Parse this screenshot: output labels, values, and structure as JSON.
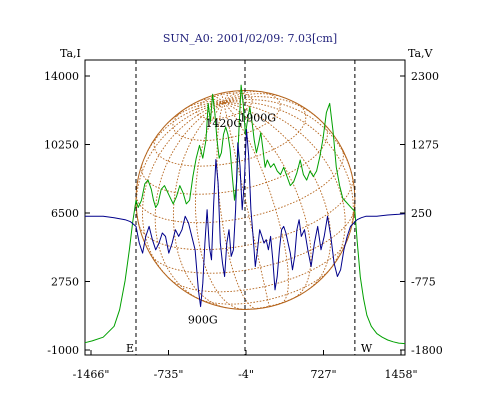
{
  "chart_data": {
    "type": "line",
    "title": "SUN_A0: 2001/02/09: 7.03[cm]",
    "y_left": {
      "label": "Ta,I",
      "ticks": [
        "14000",
        "10250",
        "6500",
        "2750",
        "-1000"
      ],
      "range": [
        -1000,
        14000
      ]
    },
    "y_right": {
      "label": "Ta,V",
      "ticks": [
        "2300",
        "1275",
        "250",
        "-775",
        "-1800"
      ],
      "range": [
        -1800,
        2300
      ]
    },
    "x_axis": {
      "ticks": [
        "-1466\"",
        "-735\"",
        "-4\"",
        "727\"",
        "1458\""
      ],
      "range": [
        -1466,
        1458
      ]
    },
    "markers": [
      {
        "label": "E",
        "x": -1000
      },
      {
        "label": "",
        "x": -4
      },
      {
        "label": "W",
        "x": 1000
      }
    ],
    "annotations": [
      {
        "text": "1420G",
        "x": -220,
        "y": 11200
      },
      {
        "text": "1900G",
        "x": 90,
        "y": 11500
      },
      {
        "text": "900G",
        "x": -380,
        "y": 450
      }
    ],
    "grid": false,
    "sun_disk": {
      "center_x": 0,
      "radius_arcsec": 1000,
      "color": "#b5651d"
    },
    "series": [
      {
        "axis": "left",
        "color": "#00a000",
        "x": [
          -1466,
          -1400,
          -1300,
          -1200,
          -1150,
          -1100,
          -1060,
          -1030,
          -1000,
          -980,
          -950,
          -920,
          -890,
          -860,
          -840,
          -820,
          -800,
          -770,
          -740,
          -700,
          -660,
          -630,
          -600,
          -570,
          -540,
          -510,
          -480,
          -450,
          -420,
          -390,
          -360,
          -340,
          -320,
          -300,
          -280,
          -260,
          -240,
          -220,
          -200,
          -180,
          -160,
          -140,
          -120,
          -100,
          -80,
          -60,
          -40,
          -20,
          0,
          20,
          40,
          60,
          80,
          100,
          120,
          140,
          160,
          180,
          200,
          230,
          260,
          290,
          320,
          350,
          380,
          410,
          440,
          470,
          500,
          530,
          560,
          590,
          620,
          650,
          680,
          710,
          740,
          770,
          800,
          830,
          860,
          890,
          920,
          950,
          980,
          1000,
          1020,
          1050,
          1080,
          1110,
          1150,
          1200,
          1250,
          1300,
          1350,
          1400,
          1458
        ],
        "y": [
          -600,
          -500,
          -300,
          300,
          1200,
          2800,
          4500,
          6000,
          7200,
          6800,
          7200,
          8100,
          8300,
          7800,
          7200,
          6800,
          7000,
          7800,
          8000,
          7500,
          7000,
          7400,
          8000,
          7600,
          7000,
          7200,
          8500,
          9500,
          10200,
          9500,
          10500,
          12500,
          11500,
          13000,
          12000,
          10500,
          9500,
          9800,
          10800,
          11200,
          10800,
          10000,
          8500,
          7200,
          8200,
          11000,
          13500,
          12500,
          10800,
          11600,
          12300,
          11500,
          10500,
          9800,
          10300,
          10900,
          10000,
          9000,
          9400,
          9000,
          9200,
          8800,
          8600,
          9000,
          8500,
          8000,
          8200,
          8700,
          9400,
          8600,
          8300,
          8800,
          8500,
          8800,
          9600,
          10600,
          12000,
          12500,
          11000,
          9000,
          8000,
          7300,
          7100,
          6900,
          6700,
          6600,
          5000,
          3000,
          1800,
          900,
          300,
          -100,
          -300,
          -450,
          -550,
          -620,
          -650
        ]
      },
      {
        "axis": "right",
        "color": "#00008b",
        "x": [
          -1466,
          -1400,
          -1300,
          -1200,
          -1100,
          -1050,
          -1000,
          -970,
          -940,
          -910,
          -880,
          -850,
          -820,
          -790,
          -760,
          -730,
          -700,
          -670,
          -640,
          -610,
          -580,
          -550,
          -520,
          -490,
          -460,
          -430,
          -410,
          -390,
          -370,
          -350,
          -330,
          -310,
          -290,
          -270,
          -250,
          -230,
          -210,
          -190,
          -170,
          -150,
          -130,
          -110,
          -90,
          -70,
          -50,
          -30,
          -10,
          10,
          30,
          50,
          70,
          90,
          110,
          130,
          150,
          170,
          190,
          210,
          230,
          250,
          270,
          290,
          310,
          330,
          350,
          370,
          390,
          410,
          430,
          450,
          470,
          490,
          510,
          540,
          570,
          600,
          630,
          660,
          690,
          720,
          750,
          780,
          810,
          840,
          870,
          900,
          930,
          960,
          990,
          1020,
          1060,
          1100,
          1150,
          1200,
          1300,
          1400,
          1458
        ],
        "y": [
          200,
          200,
          200,
          180,
          150,
          120,
          50,
          -200,
          -350,
          -100,
          50,
          -150,
          -300,
          -200,
          -50,
          -100,
          -350,
          -200,
          0,
          -100,
          0,
          200,
          100,
          -100,
          -300,
          -900,
          -1150,
          -800,
          -200,
          300,
          -250,
          -450,
          400,
          1050,
          700,
          -200,
          -500,
          -700,
          -200,
          0,
          -400,
          -300,
          300,
          1300,
          950,
          300,
          700,
          1500,
          1100,
          300,
          -100,
          -550,
          -300,
          0,
          -100,
          -200,
          -150,
          -300,
          -100,
          -450,
          -900,
          -700,
          -300,
          0,
          50,
          -50,
          -200,
          -350,
          -600,
          -400,
          0,
          150,
          -100,
          0,
          -300,
          -550,
          -200,
          50,
          -300,
          -100,
          200,
          -100,
          -500,
          -700,
          -600,
          -300,
          -100,
          50,
          100,
          150,
          180,
          200,
          200,
          200,
          220,
          230,
          240
        ]
      }
    ]
  }
}
